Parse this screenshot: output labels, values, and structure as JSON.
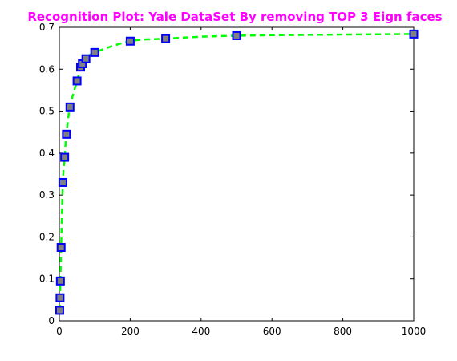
{
  "chart_data": {
    "type": "line",
    "title": "Recognition Plot: Yale DataSet By removing TOP 3 Eign faces",
    "xlabel": "",
    "ylabel": "",
    "xlim": [
      0,
      1000
    ],
    "ylim": [
      0,
      0.7
    ],
    "x_ticks": [
      0,
      200,
      400,
      600,
      800,
      1000
    ],
    "y_ticks": [
      0,
      0.1,
      0.2,
      0.3,
      0.4,
      0.5,
      0.6,
      0.7
    ],
    "x_tick_labels": [
      "0",
      "200",
      "400",
      "600",
      "800",
      "1000"
    ],
    "y_tick_labels": [
      "0",
      "0.1",
      "0.2",
      "0.3",
      "0.4",
      "0.5",
      "0.6",
      "0.7"
    ],
    "grid": false,
    "series": [
      {
        "x": [
          1,
          2,
          3,
          5,
          10,
          15,
          20,
          30,
          50,
          60,
          65,
          75,
          100,
          200,
          300,
          500,
          1000
        ],
        "y": [
          0.025,
          0.055,
          0.095,
          0.175,
          0.33,
          0.39,
          0.445,
          0.51,
          0.572,
          0.605,
          0.613,
          0.625,
          0.64,
          0.667,
          0.673,
          0.68,
          0.684
        ]
      }
    ],
    "colors": {
      "title": "#ff00ff",
      "line": "#00ff00",
      "marker_edge": "#0000ff",
      "marker_face": "#808080"
    }
  }
}
